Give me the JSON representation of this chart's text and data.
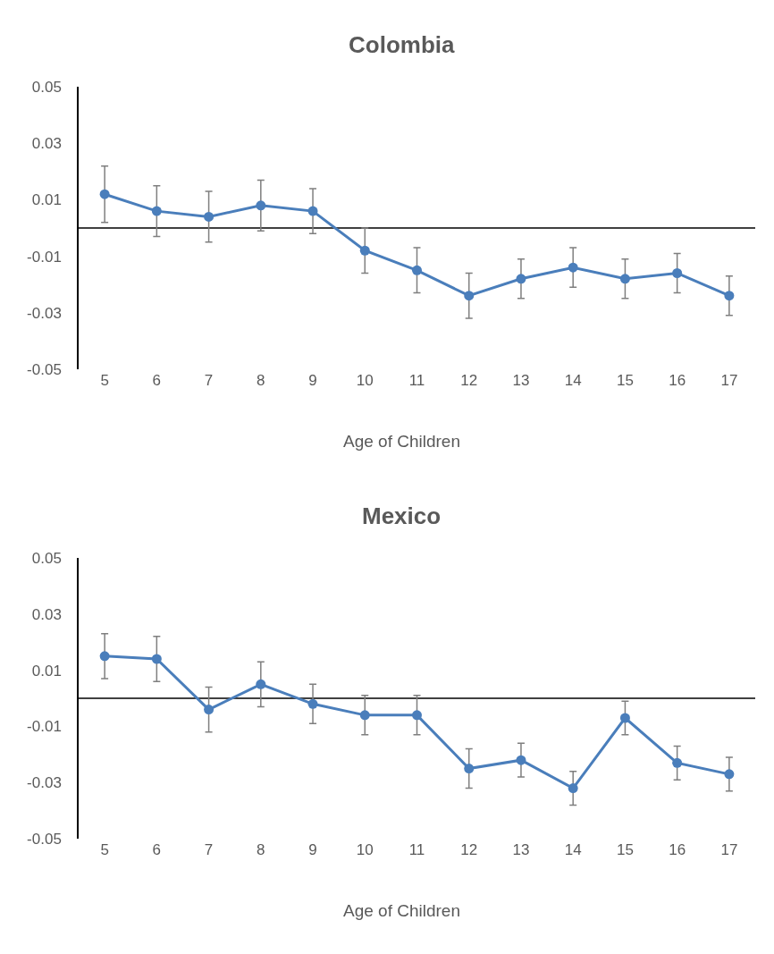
{
  "chart_data": [
    {
      "type": "line",
      "title": "Colombia",
      "xlabel": "Age of Children",
      "categories": [
        "5",
        "6",
        "7",
        "8",
        "9",
        "10",
        "11",
        "12",
        "13",
        "14",
        "15",
        "16",
        "17"
      ],
      "series": [
        {
          "color": "#4a7ebb",
          "values": [
            0.012,
            0.006,
            0.004,
            0.008,
            0.006,
            -0.008,
            -0.015,
            -0.024,
            -0.018,
            -0.014,
            -0.018,
            -0.016,
            -0.024
          ],
          "errors": [
            0.01,
            0.009,
            0.009,
            0.009,
            0.008,
            0.008,
            0.008,
            0.008,
            0.007,
            0.007,
            0.007,
            0.007,
            0.007
          ]
        }
      ],
      "ylim": [
        -0.05,
        0.05
      ],
      "yticks": [
        -0.05,
        -0.03,
        -0.01,
        0.01,
        0.03,
        0.05
      ],
      "grid": false,
      "marker": "circle",
      "line_style": "solid",
      "ref_lines": [
        {
          "axis": "y",
          "value": 0,
          "color": "#000000"
        }
      ]
    },
    {
      "type": "line",
      "title": "Mexico",
      "xlabel": "Age of Children",
      "categories": [
        "5",
        "6",
        "7",
        "8",
        "9",
        "10",
        "11",
        "12",
        "13",
        "14",
        "15",
        "16",
        "17"
      ],
      "series": [
        {
          "color": "#4a7ebb",
          "values": [
            0.015,
            0.014,
            -0.004,
            0.005,
            -0.002,
            -0.006,
            -0.006,
            -0.025,
            -0.022,
            -0.032,
            -0.007,
            -0.023,
            -0.027
          ],
          "errors": [
            0.008,
            0.008,
            0.008,
            0.008,
            0.007,
            0.007,
            0.007,
            0.007,
            0.006,
            0.006,
            0.006,
            0.006,
            0.006
          ]
        }
      ],
      "ylim": [
        -0.05,
        0.05
      ],
      "yticks": [
        -0.05,
        -0.03,
        -0.01,
        0.01,
        0.03,
        0.05
      ],
      "grid": false,
      "marker": "circle",
      "line_style": "solid",
      "ref_lines": [
        {
          "axis": "y",
          "value": 0,
          "color": "#000000"
        }
      ]
    }
  ]
}
